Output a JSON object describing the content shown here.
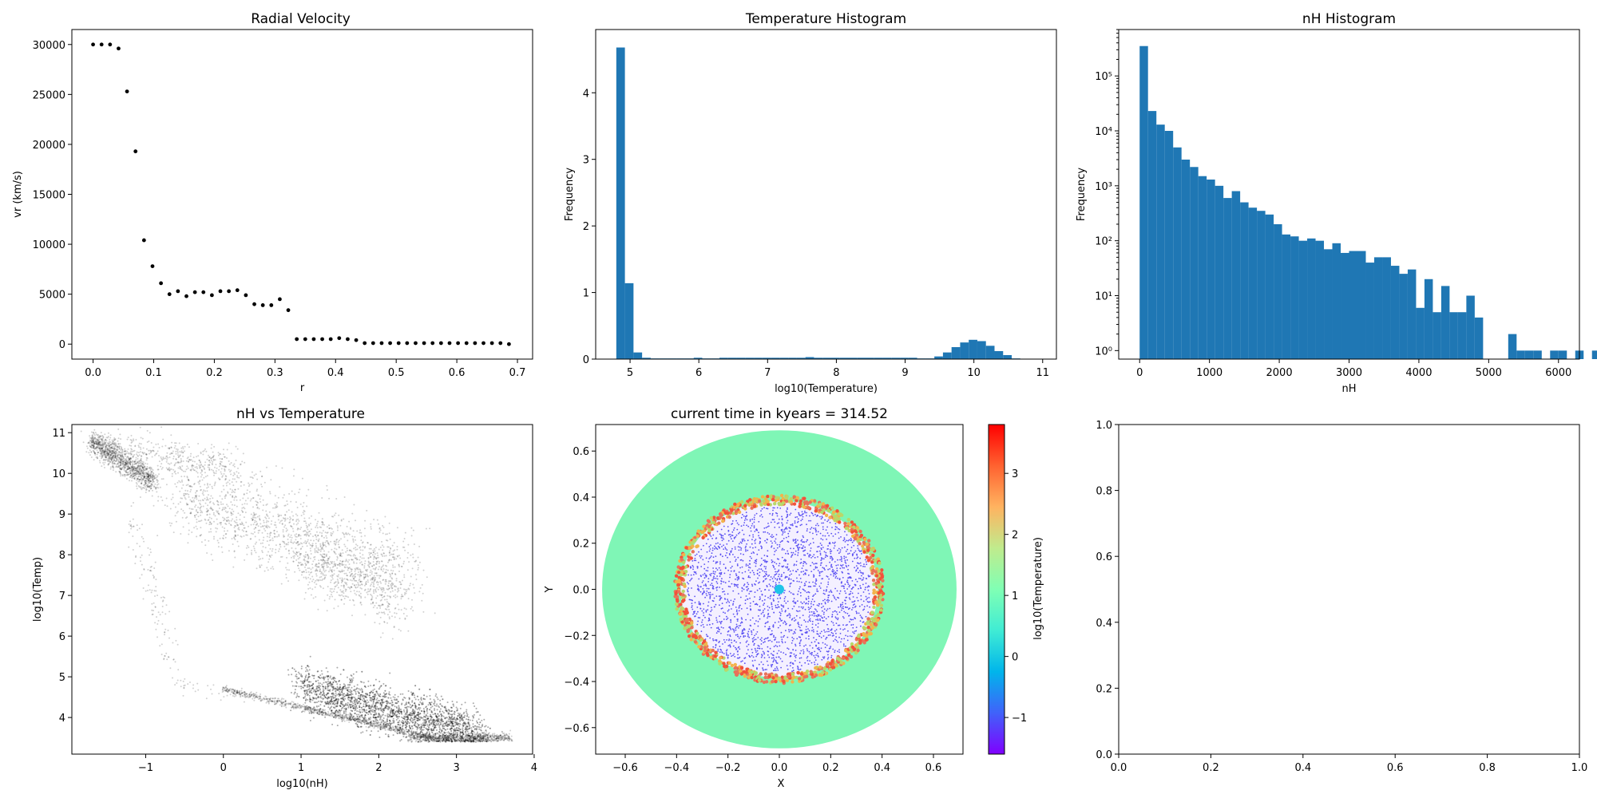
{
  "chart_data": [
    {
      "type": "scatter",
      "title": "Radial Velocity",
      "xlabel": "r",
      "ylabel": "vr (km/s)",
      "xlim": [
        -0.035,
        0.725
      ],
      "ylim": [
        -1500,
        31500
      ],
      "xticks": [
        0.0,
        0.1,
        0.2,
        0.3,
        0.4,
        0.5,
        0.6,
        0.7
      ],
      "xtick_labels": [
        "0.0",
        "0.1",
        "0.2",
        "0.3",
        "0.4",
        "0.5",
        "0.6",
        "0.7"
      ],
      "yticks": [
        0,
        5000,
        10000,
        15000,
        20000,
        25000,
        30000
      ],
      "ytick_labels": [
        "0",
        "5000",
        "10000",
        "15000",
        "20000",
        "25000",
        "30000"
      ],
      "series": [
        {
          "color": "#000000",
          "x": [
            0.0,
            0.014,
            0.028,
            0.042,
            0.056,
            0.07,
            0.084,
            0.098,
            0.112,
            0.126,
            0.14,
            0.154,
            0.168,
            0.182,
            0.196,
            0.21,
            0.224,
            0.238,
            0.252,
            0.266,
            0.28,
            0.294,
            0.308,
            0.322,
            0.336,
            0.35,
            0.364,
            0.378,
            0.392,
            0.406,
            0.42,
            0.434,
            0.448,
            0.462,
            0.476,
            0.49,
            0.504,
            0.518,
            0.532,
            0.546,
            0.56,
            0.574,
            0.588,
            0.602,
            0.616,
            0.63,
            0.644,
            0.658,
            0.672,
            0.686
          ],
          "y": [
            30000,
            30000,
            30000,
            29600,
            25300,
            19300,
            10400,
            7800,
            6100,
            5000,
            5300,
            4800,
            5200,
            5200,
            4900,
            5300,
            5300,
            5400,
            4900,
            4000,
            3900,
            3900,
            4500,
            3400,
            500,
            500,
            500,
            500,
            500,
            600,
            500,
            400,
            100,
            100,
            100,
            100,
            100,
            100,
            100,
            100,
            100,
            100,
            100,
            100,
            100,
            100,
            100,
            100,
            100,
            0
          ]
        }
      ]
    },
    {
      "type": "bar",
      "title": "Temperature Histogram",
      "xlabel": "log10(Temperature)",
      "ylabel": "Frequency",
      "xlim": [
        4.5,
        11.2
      ],
      "ylim": [
        0,
        4.95
      ],
      "xticks": [
        5,
        6,
        7,
        8,
        9,
        10,
        11
      ],
      "xtick_labels": [
        "5",
        "6",
        "7",
        "8",
        "9",
        "10",
        "11"
      ],
      "yticks": [
        0,
        1,
        2,
        3,
        4
      ],
      "ytick_labels": [
        "0",
        "1",
        "2",
        "3",
        "4"
      ],
      "bar_color": "#1f77b4",
      "bin_start": 4.8,
      "bin_width": 0.125,
      "values": [
        4.68,
        1.14,
        0.1,
        0.02,
        0.01,
        0.01,
        0.01,
        0.01,
        0.01,
        0.02,
        0.01,
        0.01,
        0.02,
        0.02,
        0.02,
        0.02,
        0.02,
        0.02,
        0.02,
        0.02,
        0.02,
        0.02,
        0.03,
        0.02,
        0.02,
        0.02,
        0.02,
        0.02,
        0.02,
        0.02,
        0.02,
        0.02,
        0.02,
        0.02,
        0.02,
        0.01,
        0.01,
        0.04,
        0.1,
        0.18,
        0.25,
        0.29,
        0.27,
        0.2,
        0.12,
        0.06,
        0.01
      ]
    },
    {
      "type": "bar",
      "title": "nH Histogram",
      "xlabel": "nH",
      "ylabel": "Frequency",
      "yscale": "log",
      "xlim": [
        -300,
        6300
      ],
      "ylim": [
        0.7,
        700000
      ],
      "xticks": [
        0,
        1000,
        2000,
        3000,
        4000,
        5000,
        6000
      ],
      "xtick_labels": [
        "0",
        "1000",
        "2000",
        "3000",
        "4000",
        "5000",
        "6000"
      ],
      "yticks": [
        1,
        10,
        100,
        1000,
        10000,
        100000
      ],
      "ytick_labels": [
        "10⁰",
        "10¹",
        "10²",
        "10³",
        "10⁴",
        "10⁵"
      ],
      "bar_color": "#1f77b4",
      "bin_start": 0,
      "bin_width": 120,
      "values": [
        350000,
        23000,
        13000,
        10000,
        5000,
        3000,
        2200,
        1500,
        1300,
        1000,
        600,
        800,
        500,
        400,
        350,
        300,
        200,
        130,
        120,
        100,
        110,
        100,
        70,
        90,
        60,
        65,
        65,
        40,
        50,
        50,
        35,
        25,
        30,
        6,
        20,
        5,
        15,
        5,
        5,
        10,
        4,
        0,
        0,
        0,
        2,
        1,
        1,
        1,
        0,
        1,
        1,
        0,
        1,
        0,
        1
      ]
    },
    {
      "type": "scatter",
      "title": "nH vs Temperature",
      "xlabel": "log10(nH)",
      "ylabel": "log10(Temp)",
      "xlim": [
        -1.95,
        3.98
      ],
      "ylim": [
        3.1,
        11.2
      ],
      "xticks": [
        -1,
        0,
        1,
        2,
        3,
        4
      ],
      "xtick_labels": [
        "−1",
        "0",
        "1",
        "2",
        "3",
        "4"
      ],
      "yticks": [
        4,
        5,
        6,
        7,
        8,
        9,
        10,
        11
      ],
      "ytick_labels": [
        "4",
        "5",
        "6",
        "7",
        "8",
        "9",
        "10",
        "11"
      ],
      "point_color": "#000000",
      "regions": [
        {
          "x": [
            -1.7,
            -0.9
          ],
          "y": [
            10.8,
            9.8
          ],
          "spread": 0.15,
          "n": 1200
        },
        {
          "x": [
            -1.4,
            0.2
          ],
          "y": [
            10.6,
            10.1
          ],
          "spread": 0.25,
          "n": 400
        },
        {
          "x": [
            -0.6,
            2.4
          ],
          "y": [
            9.5,
            7.5
          ],
          "spread": 0.5,
          "n": 1500
        },
        {
          "x": [
            1.0,
            2.3
          ],
          "y": [
            7.9,
            6.8
          ],
          "spread": 0.35,
          "n": 500
        },
        {
          "x": [
            -1.2,
            -0.6
          ],
          "y": [
            9.0,
            5.0
          ],
          "spread": 0.2,
          "n": 120
        },
        {
          "x": [
            -0.7,
            0.3
          ],
          "y": [
            4.9,
            4.5
          ],
          "spread": 0.1,
          "n": 40
        },
        {
          "x": [
            0.0,
            2.8
          ],
          "y": [
            4.7,
            3.45
          ],
          "spread": 0.04,
          "n": 900
        },
        {
          "x": [
            1.0,
            3.3
          ],
          "y": [
            4.75,
            3.6
          ],
          "spread": 0.28,
          "n": 4500
        },
        {
          "x": [
            2.4,
            3.7
          ],
          "y": [
            3.5,
            3.5
          ],
          "spread": 0.06,
          "n": 700
        }
      ]
    },
    {
      "type": "scatter",
      "title": "current time in kyears = 314.52",
      "xlabel": "X",
      "ylabel": "Y",
      "xlim": [
        -0.715,
        0.715
      ],
      "ylim": [
        -0.715,
        0.715
      ],
      "xticks": [
        -0.6,
        -0.4,
        -0.2,
        0.0,
        0.2,
        0.4,
        0.6
      ],
      "xtick_labels": [
        "−0.6",
        "−0.4",
        "−0.2",
        "0.0",
        "0.2",
        "0.4",
        "0.6"
      ],
      "yticks": [
        -0.6,
        -0.4,
        -0.2,
        0.0,
        0.2,
        0.4,
        0.6
      ],
      "ytick_labels": [
        "−0.6",
        "−0.4",
        "−0.2",
        "0.0",
        "0.2",
        "0.4",
        "0.6"
      ],
      "colormap": "rainbow",
      "outer_radius": 0.69,
      "inner_radius": 0.4,
      "outer_color": "#7ff6b6",
      "inner_point_color": "#5a50f2",
      "edge_colors": [
        "#f2b44c",
        "#e8735a",
        "#b8d86a",
        "#f2523a"
      ],
      "colorbar": {
        "label": "log10(Temperature)",
        "range": [
          -1.6,
          3.8
        ],
        "ticks": [
          -1,
          0,
          1,
          2,
          3
        ],
        "tick_labels": [
          "−1",
          "0",
          "1",
          "2",
          "3"
        ],
        "colors": [
          "#8000ff",
          "#4062fa",
          "#00b5eb",
          "#40ecd4",
          "#80ffb4",
          "#c0eb8d",
          "#ffb360",
          "#ff6230",
          "#ff0000"
        ]
      }
    },
    {
      "type": "line",
      "title": "",
      "xlim": [
        0,
        1
      ],
      "ylim": [
        0,
        1
      ],
      "xticks": [
        0.0,
        0.2,
        0.4,
        0.6,
        0.8,
        1.0
      ],
      "xtick_labels": [
        "0.0",
        "0.2",
        "0.4",
        "0.6",
        "0.8",
        "1.0"
      ],
      "yticks": [
        0.0,
        0.2,
        0.4,
        0.6,
        0.8,
        1.0
      ],
      "ytick_labels": [
        "0.0",
        "0.2",
        "0.4",
        "0.6",
        "0.8",
        "1.0"
      ],
      "series": []
    }
  ]
}
